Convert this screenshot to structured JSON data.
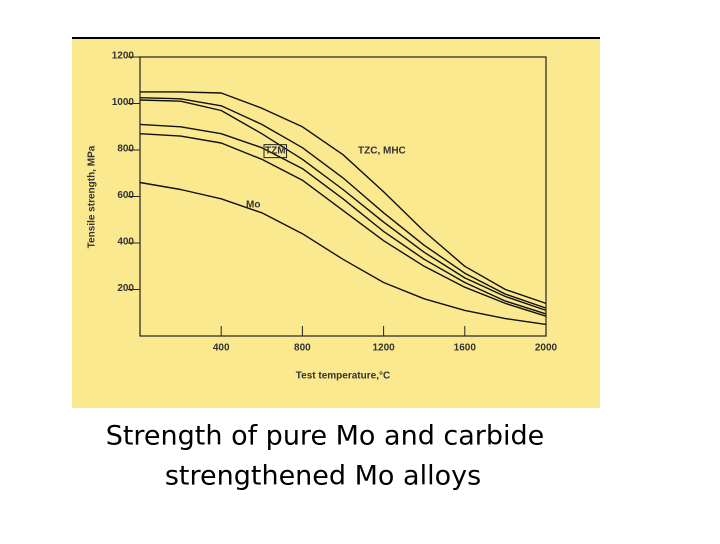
{
  "chart_data": {
    "type": "line",
    "x": [
      0,
      200,
      400,
      600,
      800,
      1000,
      1200,
      1400,
      1600,
      1800,
      2000
    ],
    "series": [
      {
        "color": "#111111",
        "values": [
          1050,
          1050,
          1045,
          980,
          900,
          780,
          620,
          450,
          300,
          200,
          140
        ]
      },
      {
        "color": "#111111",
        "values": [
          1025,
          1020,
          990,
          910,
          810,
          680,
          530,
          390,
          270,
          180,
          120
        ]
      },
      {
        "color": "#111111",
        "values": [
          1015,
          1010,
          970,
          870,
          760,
          630,
          490,
          360,
          250,
          170,
          110
        ]
      },
      {
        "color": "#111111",
        "values": [
          910,
          900,
          870,
          810,
          720,
          590,
          450,
          330,
          230,
          150,
          95
        ]
      },
      {
        "color": "#111111",
        "values": [
          870,
          860,
          830,
          760,
          670,
          540,
          410,
          300,
          210,
          140,
          85
        ]
      },
      {
        "color": "#111111",
        "values": [
          660,
          630,
          590,
          530,
          440,
          330,
          230,
          160,
          110,
          75,
          50
        ]
      }
    ],
    "annotations": [
      "TZM",
      "TZC, MHC",
      "Mo"
    ],
    "xlabel": "Test temperature,°C",
    "ylabel": "Tensile strength, MPa",
    "xlim": [
      0,
      2000
    ],
    "xticks": [
      400,
      800,
      1200,
      1600,
      2000
    ],
    "ylim": [
      0,
      1200
    ],
    "yticks": [
      200,
      400,
      600,
      800,
      1000,
      1200
    ],
    "grid": false,
    "background": "#fbe98f"
  },
  "caption": [
    "Strength of pure Mo and carbide",
    "strengthened Mo  alloys"
  ]
}
